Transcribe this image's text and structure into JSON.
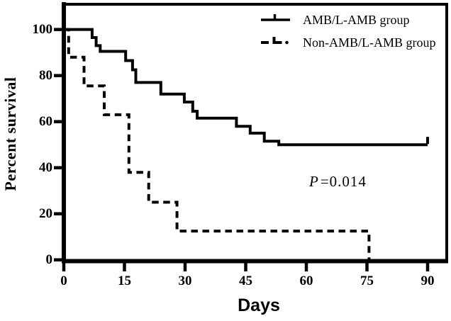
{
  "figure": {
    "background": "#ffffff",
    "ink_color": "#000000"
  },
  "chart_data": {
    "type": "line",
    "subtype": "kaplan_meier_step",
    "title": "",
    "xlabel": "Days",
    "ylabel": "Percent survival",
    "xticks": [
      0,
      15,
      30,
      45,
      60,
      75,
      90
    ],
    "yticks": [
      0,
      20,
      40,
      60,
      80,
      100
    ],
    "xlim": [
      0,
      94
    ],
    "ylim": [
      0,
      111
    ],
    "grid": false,
    "legend_position": "top-right-inside",
    "annotation": {
      "p_label": "P",
      "p_value": "=0.014"
    },
    "series": [
      {
        "name": "AMB/L-AMB group",
        "line_style": "solid",
        "color": "#000000",
        "steps_day_percent": [
          [
            0,
            100
          ],
          [
            7,
            100
          ],
          [
            7,
            96.5
          ],
          [
            8,
            96.5
          ],
          [
            8,
            93
          ],
          [
            9,
            93
          ],
          [
            9,
            90.5
          ],
          [
            15.3,
            90.5
          ],
          [
            15.3,
            86.5
          ],
          [
            17,
            86.5
          ],
          [
            17,
            82.5
          ],
          [
            17.8,
            82.5
          ],
          [
            17.8,
            77
          ],
          [
            24,
            77
          ],
          [
            24,
            72
          ],
          [
            29.8,
            72
          ],
          [
            29.8,
            68.5
          ],
          [
            31.9,
            68.5
          ],
          [
            31.9,
            64.5
          ],
          [
            33,
            64.5
          ],
          [
            33,
            61.5
          ],
          [
            42.7,
            61.5
          ],
          [
            42.7,
            58
          ],
          [
            46.1,
            58
          ],
          [
            46.1,
            55
          ],
          [
            49.6,
            55
          ],
          [
            49.6,
            51.5
          ],
          [
            53.2,
            51.5
          ],
          [
            53.2,
            50
          ],
          [
            90,
            50
          ]
        ],
        "censor_tick_days": [
          90
        ],
        "final_percent": 50
      },
      {
        "name": "Non-AMB/L-AMB group",
        "line_style": "dashed",
        "color": "#000000",
        "steps_day_percent": [
          [
            0,
            100
          ],
          [
            1.2,
            100
          ],
          [
            1.2,
            88
          ],
          [
            5,
            88
          ],
          [
            5,
            75.5
          ],
          [
            10,
            75.5
          ],
          [
            10,
            63
          ],
          [
            16.1,
            63
          ],
          [
            16.1,
            38
          ],
          [
            21,
            38
          ],
          [
            21,
            25
          ],
          [
            28,
            25
          ],
          [
            28,
            12.5
          ],
          [
            75.5,
            12.5
          ],
          [
            75.5,
            0
          ]
        ],
        "censor_tick_days": [],
        "final_percent": 0
      }
    ]
  }
}
